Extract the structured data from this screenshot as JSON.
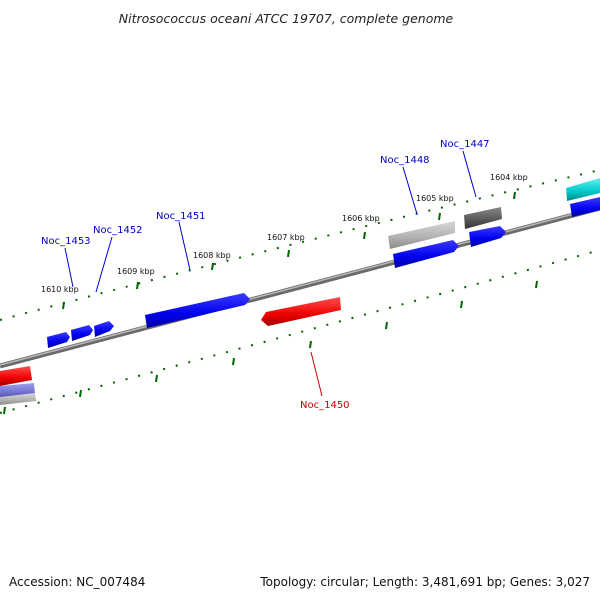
{
  "title": "Nitrosococcus oceani ATCC 19707, complete genome",
  "footer": {
    "accession": "Accession: NC_007484",
    "summary": "Topology: circular; Length: 3,481,691 bp; Genes: 3,027"
  },
  "tick_labels": [
    "1610 kbp",
    "1609 kbp",
    "1608 kbp",
    "1607 kbp",
    "1606 kbp",
    "1605 kbp",
    "1604 kbp"
  ],
  "gene_labels": [
    {
      "text": "Noc_1453",
      "color": "#0000cc"
    },
    {
      "text": "Noc_1452",
      "color": "#0000cc"
    },
    {
      "text": "Noc_1451",
      "color": "#0000cc"
    },
    {
      "text": "Noc_1448",
      "color": "#0000cc"
    },
    {
      "text": "Noc_1447",
      "color": "#0000cc"
    },
    {
      "text": "Noc_1450",
      "color": "#cc0000"
    }
  ],
  "colors": {
    "forward_gene": "#0000ff",
    "reverse_gene": "#ff0000",
    "gray_gene": "#b0b0b0",
    "dark_gene": "#555555",
    "teal_gene": "#00c8c8",
    "lavender_gene": "#7070d0",
    "backbone": "#888888",
    "tick": "#006600"
  }
}
